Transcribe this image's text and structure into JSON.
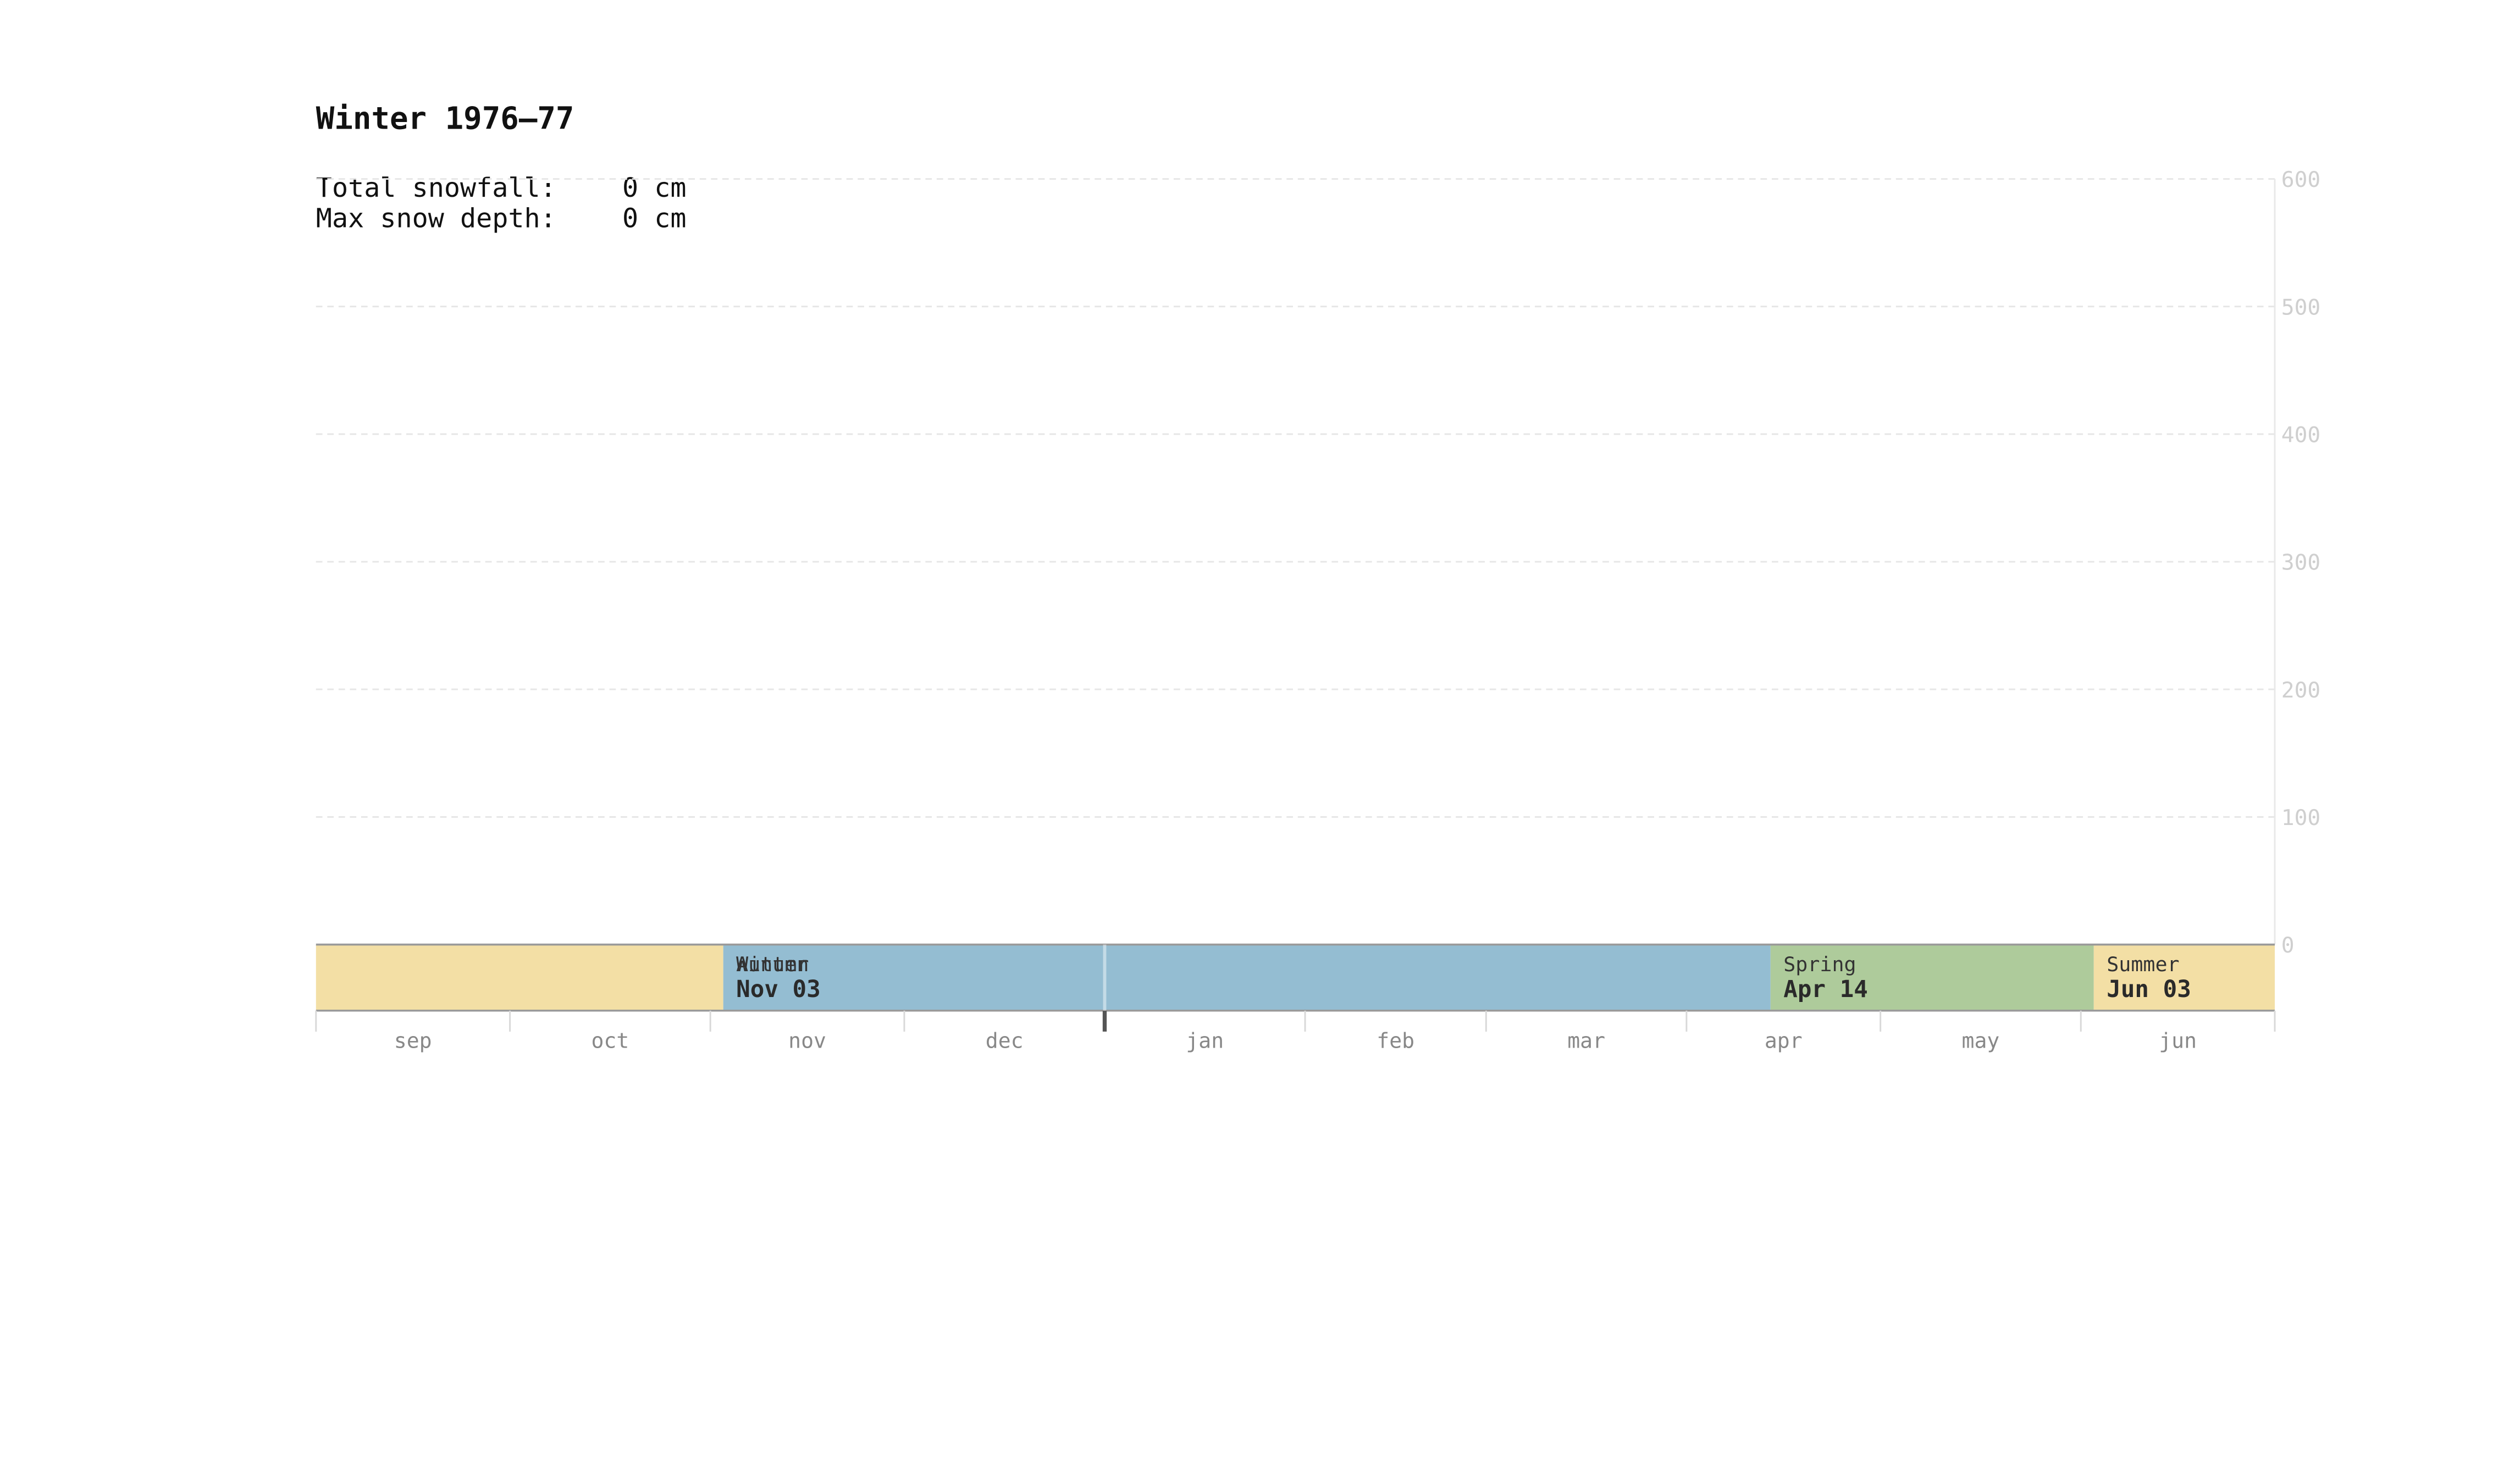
{
  "chart_data": {
    "type": "area",
    "title": "Winter 1976–77",
    "stats": [
      {
        "label": "Total snowfall:",
        "value": "0 cm"
      },
      {
        "label": "Max snow depth:",
        "value": "0 cm"
      }
    ],
    "y_ticks": [
      0,
      100,
      200,
      300,
      400,
      500,
      600
    ],
    "ylim": [
      0,
      600
    ],
    "months": [
      "sep",
      "oct",
      "nov",
      "dec",
      "jan",
      "feb",
      "mar",
      "apr",
      "may",
      "jun"
    ],
    "seasons": [
      {
        "name": "",
        "date": "",
        "start": "1976-09-01",
        "end": "1976-11-03",
        "color": "#f3dfa5"
      },
      {
        "name": "Autumn",
        "date": "",
        "start": "1976-11-03",
        "end": "1976-11-03",
        "color": "#94bdd2"
      },
      {
        "name": "Winter",
        "date": "Nov 03",
        "start": "1976-11-03",
        "end": "1977-04-14",
        "color": "#94bdd2"
      },
      {
        "name": "Spring",
        "date": "Apr 14",
        "start": "1977-04-14",
        "end": "1977-06-03",
        "color": "#aecb9b"
      },
      {
        "name": "Summer",
        "date": "Jun 03",
        "start": "1977-06-03",
        "end": "1977-07-01",
        "color": "#f3dfa5"
      }
    ],
    "x_range": [
      "1976-09-01",
      "1977-07-01"
    ],
    "snow_depth": [],
    "grid": true
  }
}
